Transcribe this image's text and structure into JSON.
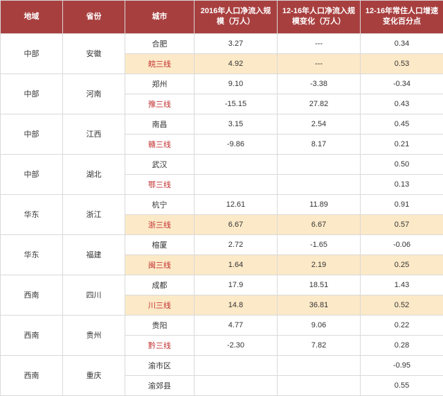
{
  "header": {
    "region": "地域",
    "province": "省份",
    "city": "城市",
    "col4": "2016年人口净流入规模（万人）",
    "col5": "12-16年人口净流入规模变化（万人）",
    "col6": "12-16年常住人口增速变化百分点"
  },
  "groups": [
    {
      "region": "中部",
      "province": "安徽",
      "rows": [
        {
          "city": "合肥",
          "v4": "3.27",
          "v5": "---",
          "v6": "0.34",
          "hl": false,
          "red": false
        },
        {
          "city": "皖三线",
          "v4": "4.92",
          "v5": "---",
          "v6": "0.53",
          "hl": true,
          "red": true
        }
      ]
    },
    {
      "region": "中部",
      "province": "河南",
      "rows": [
        {
          "city": "郑州",
          "v4": "9.10",
          "v5": "-3.38",
          "v6": "-0.34",
          "hl": false,
          "red": false
        },
        {
          "city": "豫三线",
          "v4": "-15.15",
          "v5": "27.82",
          "v6": "0.43",
          "hl": false,
          "red": true
        }
      ]
    },
    {
      "region": "中部",
      "province": "江西",
      "rows": [
        {
          "city": "南昌",
          "v4": "3.15",
          "v5": "2.54",
          "v6": "0.45",
          "hl": false,
          "red": false
        },
        {
          "city": "赣三线",
          "v4": "-9.86",
          "v5": "8.17",
          "v6": "0.21",
          "hl": false,
          "red": true
        }
      ]
    },
    {
      "region": "中部",
      "province": "湖北",
      "rows": [
        {
          "city": "武汉",
          "v4": "",
          "v5": "",
          "v6": "0.50",
          "hl": false,
          "red": false
        },
        {
          "city": "鄂三线",
          "v4": "",
          "v5": "",
          "v6": "0.13",
          "hl": false,
          "red": true
        }
      ]
    },
    {
      "region": "华东",
      "province": "浙江",
      "rows": [
        {
          "city": "杭宁",
          "v4": "12.61",
          "v5": "11.89",
          "v6": "0.91",
          "hl": false,
          "red": false
        },
        {
          "city": "浙三线",
          "v4": "6.67",
          "v5": "6.67",
          "v6": "0.57",
          "hl": true,
          "red": true
        }
      ]
    },
    {
      "region": "华东",
      "province": "福建",
      "rows": [
        {
          "city": "榕厦",
          "v4": "2.72",
          "v5": "-1.65",
          "v6": "-0.06",
          "hl": false,
          "red": false
        },
        {
          "city": "闽三线",
          "v4": "1.64",
          "v5": "2.19",
          "v6": "0.25",
          "hl": true,
          "red": true
        }
      ]
    },
    {
      "region": "西南",
      "province": "四川",
      "rows": [
        {
          "city": "成都",
          "v4": "17.9",
          "v5": "18.51",
          "v6": "1.43",
          "hl": false,
          "red": false
        },
        {
          "city": "川三线",
          "v4": "14.8",
          "v5": "36.81",
          "v6": "0.52",
          "hl": true,
          "red": true
        }
      ]
    },
    {
      "region": "西南",
      "province": "贵州",
      "rows": [
        {
          "city": "贵阳",
          "v4": "4.77",
          "v5": "9.06",
          "v6": "0.22",
          "hl": false,
          "red": false
        },
        {
          "city": "黔三线",
          "v4": "-2.30",
          "v5": "7.82",
          "v6": "0.28",
          "hl": false,
          "red": true
        }
      ]
    },
    {
      "region": "西南",
      "province": "重庆",
      "rows": [
        {
          "city": "渝市区",
          "v4": "",
          "v5": "",
          "v6": "-0.95",
          "hl": false,
          "red": false
        },
        {
          "city": "渝郊县",
          "v4": "",
          "v5": "",
          "v6": "0.55",
          "hl": false,
          "red": false
        }
      ]
    }
  ]
}
